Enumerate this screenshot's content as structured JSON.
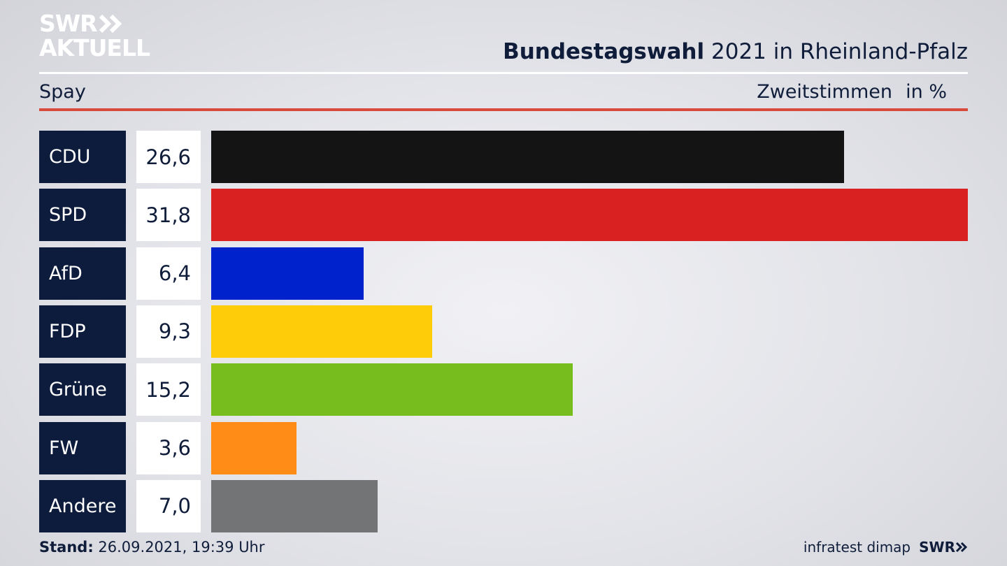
{
  "logo": {
    "line1": "SWR",
    "line2": "AKTUELL"
  },
  "header": {
    "title_bold": "Bundestagswahl",
    "title_rest": "2021 in Rheinland-Pfalz",
    "location": "Spay",
    "measure": "Zweitstimmen",
    "unit": "in %"
  },
  "chart_data": {
    "type": "bar",
    "orientation": "horizontal",
    "categories": [
      "CDU",
      "SPD",
      "AfD",
      "FDP",
      "Grüne",
      "FW",
      "Andere"
    ],
    "values": [
      26.6,
      31.8,
      6.4,
      9.3,
      15.2,
      3.6,
      7.0
    ],
    "value_labels": [
      "26,6",
      "31,8",
      "6,4",
      "9,3",
      "15,2",
      "3,6",
      "7,0"
    ],
    "colors": [
      "#141414",
      "#d82120",
      "#0022cc",
      "#ffcc0a",
      "#78bd1e",
      "#ff8c16",
      "#737475"
    ],
    "title": "Bundestagswahl 2021 in Rheinland-Pfalz",
    "xlim": [
      0,
      31.8
    ],
    "grid": false
  },
  "footer": {
    "stand_label": "Stand:",
    "stand_value": "26.09.2021, 19:39 Uhr",
    "source": "infratest dimap",
    "brand": "SWR"
  },
  "colors": {
    "navy": "#0d1c3d",
    "accent_red": "#d84a3c"
  }
}
